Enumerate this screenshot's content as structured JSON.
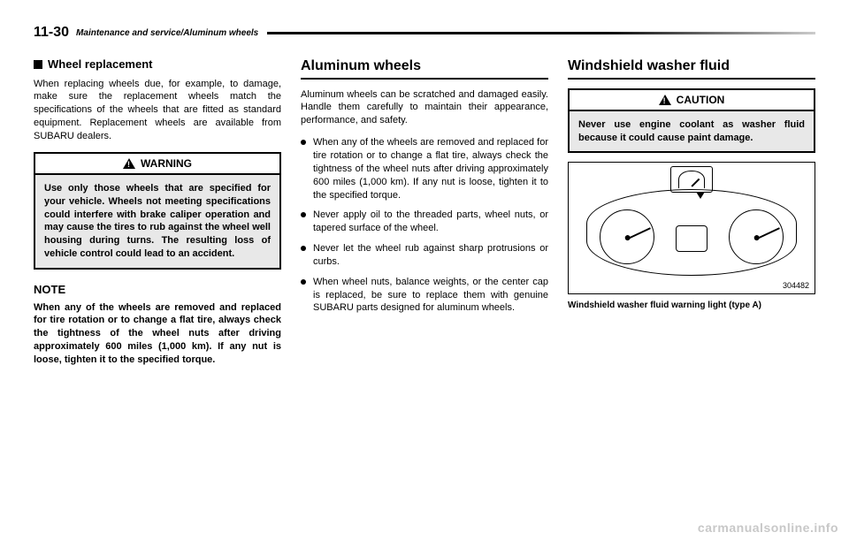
{
  "header": {
    "page_number": "11-30",
    "title": "Maintenance and service/Aluminum wheels"
  },
  "col1": {
    "subhead": "Wheel replacement",
    "para1": "When replacing wheels due, for example, to damage, make sure the replacement wheels match the specifications of the wheels that are fitted as standard equipment. Replacement wheels are available from SUBARU dealers.",
    "warning_label": "WARNING",
    "warning_body": "Use only those wheels that are specified for your vehicle. Wheels not meeting specifications could interfere with brake caliper operation and may cause the tires to rub against the wheel well housing during turns. The resulting loss of vehicle control could lead to an accident.",
    "note_label": "NOTE",
    "note_body": "When any of the wheels are removed and replaced for tire rotation or to change a flat tire, always check the tightness of the wheel nuts after driving approximately 600 miles (1,000 km). If any nut is loose, tighten it to the specified torque."
  },
  "col2": {
    "section_head": "Aluminum wheels",
    "para1": "Aluminum wheels can be scratched and damaged easily. Handle them carefully to maintain their appearance, performance, and safety.",
    "bullets": [
      "When any of the wheels are removed and replaced for tire rotation or to change a flat tire, always check the tightness of the wheel nuts after driving approximately 600 miles (1,000 km). If any nut is loose, tighten it to the specified torque.",
      "Never apply oil to the threaded parts, wheel nuts, or tapered surface of the wheel.",
      "Never let the wheel rub against sharp protrusions or curbs.",
      "When wheel nuts, balance weights, or the center cap is replaced, be sure to replace them with genuine SUBARU parts designed for aluminum wheels."
    ]
  },
  "col3": {
    "section_head": "Windshield washer fluid",
    "caution_label": "CAUTION",
    "caution_body": "Never use engine coolant as washer fluid because it could cause paint damage.",
    "illus_number": "304482",
    "caption": "Windshield washer fluid warning light (type A)"
  },
  "watermark": "carmanualsonline.info"
}
